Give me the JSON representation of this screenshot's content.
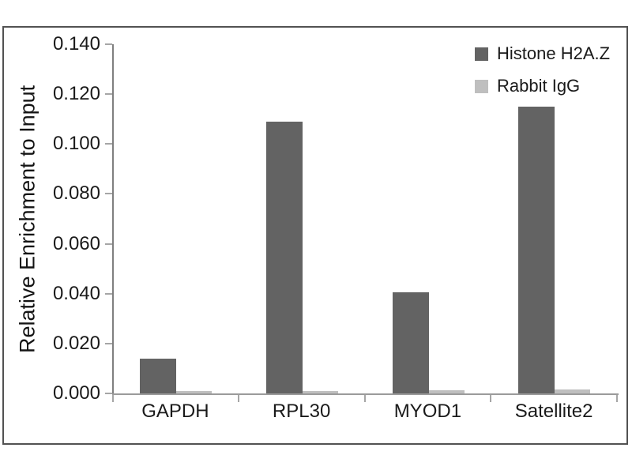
{
  "chart_data": {
    "type": "bar",
    "title": "",
    "xlabel": "",
    "ylabel": "Relative Enrichment to Input",
    "categories": [
      "GAPDH",
      "RPL30",
      "MYOD1",
      "Satellite2"
    ],
    "series": [
      {
        "name": "Histone H2A.Z",
        "color": "#636363",
        "values": [
          0.014,
          0.109,
          0.0405,
          0.115
        ]
      },
      {
        "name": "Rabbit IgG",
        "color": "#bfbfbf",
        "values": [
          0.001,
          0.001,
          0.0012,
          0.0015
        ]
      }
    ],
    "ylim": [
      0,
      0.14
    ],
    "ytick_step": 0.02,
    "ytick_labels": [
      "0.000",
      "0.020",
      "0.040",
      "0.060",
      "0.080",
      "0.100",
      "0.120",
      "0.140"
    ],
    "grid": false,
    "legend_position": "top-right"
  },
  "colors": {
    "axis_line": "#7f7f7f",
    "baseline": "#9b9b9b",
    "tick": "#a6a6a6",
    "frame_border": "#525252",
    "background": "#ffffff",
    "text": "#1a1a1a"
  }
}
